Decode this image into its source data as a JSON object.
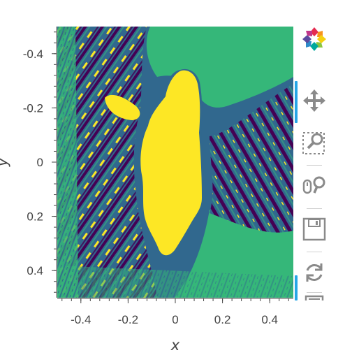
{
  "chart_data": {
    "type": "heatmap",
    "title": "",
    "xlabel": "x",
    "ylabel": "y",
    "xlim": [
      -0.5,
      0.5
    ],
    "ylim": [
      -0.5,
      0.5
    ],
    "y_inverted": true,
    "x_ticks": [
      "-0.4",
      "-0.2",
      "0",
      "0.2",
      "0.4"
    ],
    "x_tick_values": [
      -0.4,
      -0.2,
      0,
      0.2,
      0.4
    ],
    "y_ticks": [
      "-0.4",
      "-0.2",
      "0",
      "0.2",
      "0.4"
    ],
    "y_tick_values": [
      -0.4,
      -0.2,
      0,
      0.2,
      0.4
    ],
    "colormap": "viridis",
    "levels": 4,
    "colors": [
      "#440154",
      "#31688e",
      "#35b779",
      "#fde725"
    ],
    "grid": false,
    "legend": "none"
  },
  "toolbar": {
    "logo_icon": "bokeh-logo-icon",
    "tools": [
      {
        "name": "pan",
        "icon": "pan-icon",
        "active": true
      },
      {
        "name": "box-zoom",
        "icon": "box-zoom-icon",
        "active": false
      },
      {
        "name": "wheel-zoom",
        "icon": "wheel-zoom-icon",
        "active": false
      },
      {
        "name": "save",
        "icon": "save-icon",
        "active": false
      },
      {
        "name": "reset",
        "icon": "reset-icon",
        "active": false
      },
      {
        "name": "hover",
        "icon": "hover-icon",
        "active": true
      }
    ],
    "accent_color": "#26a6e6"
  }
}
